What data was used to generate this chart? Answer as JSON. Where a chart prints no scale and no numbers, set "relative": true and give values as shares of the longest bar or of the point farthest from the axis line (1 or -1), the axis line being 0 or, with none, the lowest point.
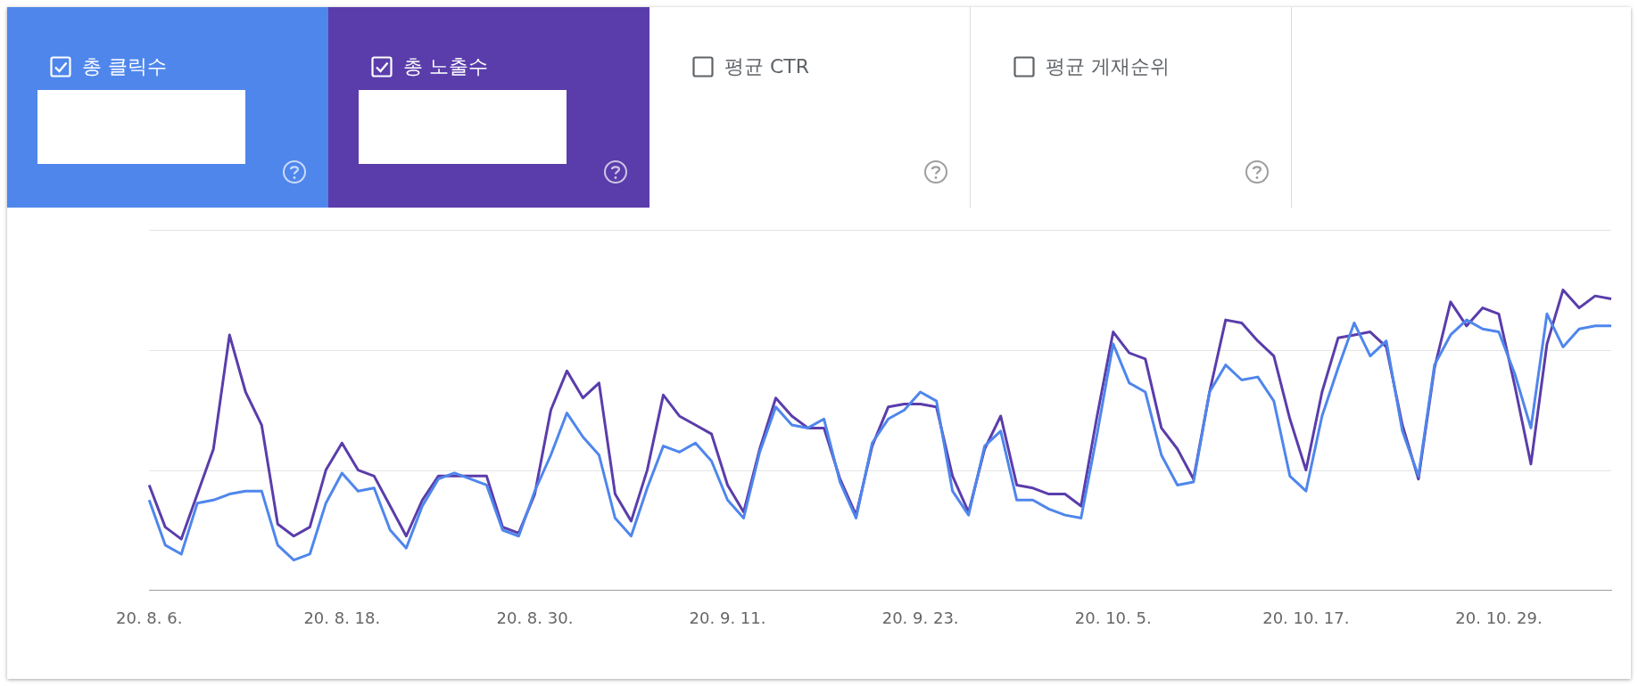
{
  "chart_data": {
    "type": "line",
    "relative": true,
    "legend": "top",
    "categories": [
      "20. 8. 6.",
      null,
      null,
      null,
      null,
      null,
      null,
      null,
      null,
      null,
      null,
      null,
      "20. 8. 18.",
      null,
      null,
      null,
      null,
      null,
      null,
      null,
      null,
      null,
      null,
      null,
      "20. 8. 30.",
      null,
      null,
      null,
      null,
      null,
      null,
      null,
      null,
      null,
      null,
      null,
      "20. 9. 11.",
      null,
      null,
      null,
      null,
      null,
      null,
      null,
      null,
      null,
      null,
      null,
      "20. 9. 23.",
      null,
      null,
      null,
      null,
      null,
      null,
      null,
      null,
      null,
      null,
      null,
      "20. 10. 5.",
      null,
      null,
      null,
      null,
      null,
      null,
      null,
      null,
      null,
      null,
      null,
      "20. 10. 17.",
      null,
      null,
      null,
      null,
      null,
      null,
      null,
      null,
      null,
      null,
      null,
      "20. 10. 29.",
      null,
      null,
      null,
      null,
      null,
      null,
      null
    ],
    "series": [
      {
        "name": "총 클릭수",
        "color": "#4f86ec",
        "values": [
          0.3,
          0.15,
          0.12,
          0.29,
          0.3,
          0.32,
          0.33,
          0.33,
          0.15,
          0.1,
          0.12,
          0.29,
          0.39,
          0.33,
          0.34,
          0.2,
          0.14,
          0.28,
          0.37,
          0.39,
          0.37,
          0.35,
          0.2,
          0.18,
          0.33,
          0.45,
          0.59,
          0.51,
          0.45,
          0.24,
          0.18,
          0.34,
          0.48,
          0.46,
          0.49,
          0.43,
          0.3,
          0.24,
          0.46,
          0.61,
          0.55,
          0.54,
          0.57,
          0.36,
          0.24,
          0.49,
          0.57,
          0.6,
          0.66,
          0.63,
          0.33,
          0.25,
          0.48,
          0.53,
          0.3,
          0.3,
          0.27,
          0.25,
          0.24,
          0.52,
          0.82,
          0.69,
          0.66,
          0.45,
          0.35,
          0.36,
          0.66,
          0.75,
          0.7,
          0.71,
          0.63,
          0.38,
          0.33,
          0.58,
          0.74,
          0.89,
          0.78,
          0.83,
          0.53,
          0.38,
          0.75,
          0.85,
          0.9,
          0.87,
          0.86,
          0.72,
          0.54,
          0.92,
          0.81,
          0.87,
          0.88,
          0.88
        ]
      },
      {
        "name": "총 노출수",
        "color": "#5a3dab",
        "values": [
          0.35,
          0.21,
          0.17,
          0.32,
          0.47,
          0.85,
          0.66,
          0.55,
          0.22,
          0.18,
          0.21,
          0.4,
          0.49,
          0.4,
          0.38,
          0.28,
          0.18,
          0.3,
          0.38,
          0.38,
          0.38,
          0.38,
          0.21,
          0.19,
          0.32,
          0.6,
          0.73,
          0.64,
          0.69,
          0.32,
          0.23,
          0.4,
          0.65,
          0.58,
          0.55,
          0.52,
          0.35,
          0.26,
          0.47,
          0.64,
          0.58,
          0.54,
          0.54,
          0.37,
          0.25,
          0.48,
          0.61,
          0.62,
          0.62,
          0.61,
          0.38,
          0.26,
          0.47,
          0.58,
          0.35,
          0.34,
          0.32,
          0.32,
          0.28,
          0.58,
          0.86,
          0.79,
          0.77,
          0.54,
          0.47,
          0.37,
          0.66,
          0.9,
          0.89,
          0.83,
          0.78,
          0.57,
          0.4,
          0.66,
          0.84,
          0.85,
          0.86,
          0.81,
          0.55,
          0.37,
          0.74,
          0.96,
          0.88,
          0.94,
          0.92,
          0.68,
          0.42,
          0.82,
          1.0,
          0.94,
          0.98,
          0.97
        ]
      }
    ],
    "annotations": [
      "평균 CTR",
      "평균 게재순위"
    ]
  }
}
